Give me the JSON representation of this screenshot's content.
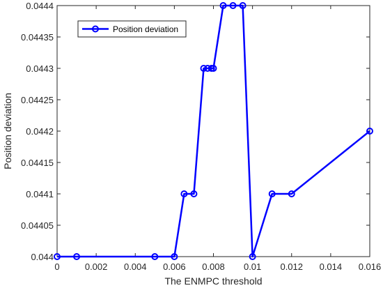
{
  "chart_data": {
    "type": "line",
    "xlabel": "The ENMPC threshold",
    "ylabel": "Position deviation",
    "xlim": [
      0,
      0.016
    ],
    "ylim": [
      0.044,
      0.0444
    ],
    "xticks": [
      "0",
      "0.002",
      "0.004",
      "0.006",
      "0.008",
      "0.01",
      "0.012",
      "0.014",
      "0.016"
    ],
    "yticks": [
      "0.044",
      "0.04405",
      "0.0441",
      "0.04415",
      "0.0442",
      "0.04425",
      "0.0443",
      "0.04435",
      "0.0444"
    ],
    "grid": false,
    "legend_position": "top-left",
    "series": [
      {
        "name": "Position deviation",
        "color": "#0000ff",
        "marker": "circle",
        "x": [
          0,
          0.001,
          0.005,
          0.006,
          0.0065,
          0.007,
          0.0075,
          0.0077,
          0.0079,
          0.008,
          0.0085,
          0.009,
          0.0095,
          0.01,
          0.011,
          0.012,
          0.016
        ],
        "y": [
          0.044,
          0.044,
          0.044,
          0.044,
          0.0441,
          0.0441,
          0.0443,
          0.0443,
          0.0443,
          0.0443,
          0.0444,
          0.0444,
          0.0444,
          0.044,
          0.0441,
          0.0441,
          0.0442
        ]
      }
    ]
  }
}
